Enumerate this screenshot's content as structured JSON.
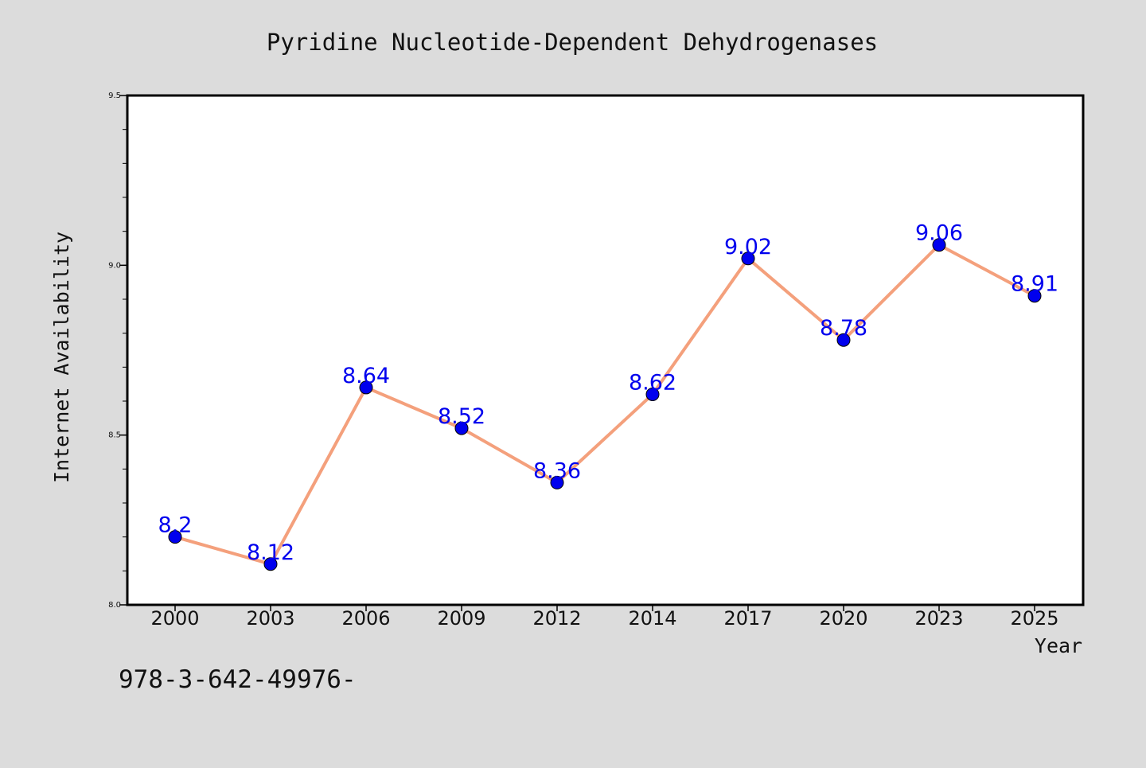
{
  "chart_data": {
    "type": "line",
    "title": "Pyridine Nucleotide-Dependent Dehydrogenases",
    "xlabel": "Year",
    "ylabel": "Internet Availability",
    "categories": [
      "2000",
      "2003",
      "2006",
      "2009",
      "2012",
      "2014",
      "2017",
      "2020",
      "2023",
      "2025"
    ],
    "series": [
      {
        "values": [
          8.2,
          8.12,
          8.64,
          8.52,
          8.36,
          8.62,
          9.02,
          8.78,
          9.06,
          8.91
        ]
      }
    ],
    "data_labels": [
      "8.2",
      "8.12",
      "8.64",
      "8.52",
      "8.36",
      "8.62",
      "9.02",
      "8.78",
      "9.06",
      "8.91"
    ],
    "ylim": [
      8.0,
      9.5
    ],
    "y_ticks": [
      "8.0",
      "8.5",
      "9.0",
      "9.5"
    ],
    "grid": false,
    "colors": {
      "line": "#f4a07c",
      "marker": "#0000ee",
      "data_label": "#0000ee",
      "plot_background": "#ffffff",
      "figure_background": "#dcdcdc"
    }
  },
  "footer": {
    "code": "978-3-642-49976-"
  }
}
